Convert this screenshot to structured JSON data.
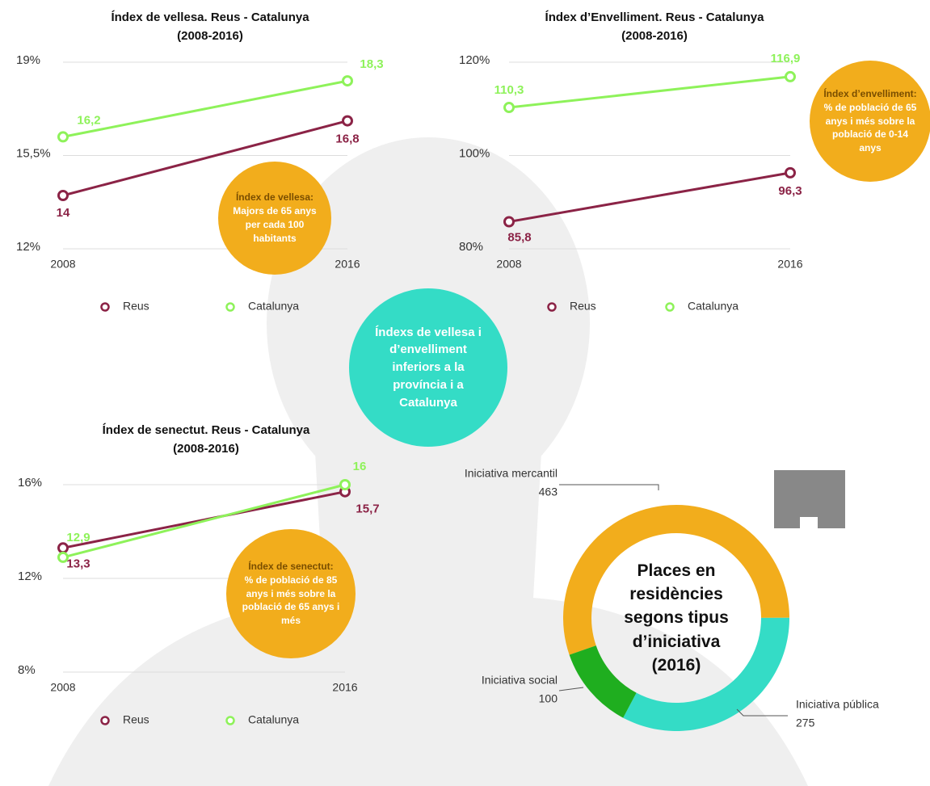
{
  "note": "Índexs de vellesa i d’envelliment inferiors a la província i a Catalunya",
  "chart_data": [
    {
      "type": "line",
      "title": "Índex de vellesa. Reus - Catalunya",
      "subtitle": "(2008-2016)",
      "categories": [
        "2008",
        "2016"
      ],
      "series": [
        {
          "name": "Reus",
          "color": "#8b2346",
          "values": [
            14,
            16.8
          ],
          "value_labels": [
            "14",
            "16,8"
          ]
        },
        {
          "name": "Catalunya",
          "color": "#8ef25a",
          "values": [
            16.2,
            18.3
          ],
          "value_labels": [
            "16,2",
            "18,3"
          ]
        }
      ],
      "ylim": [
        12,
        19
      ],
      "yticks": [
        {
          "value": 12,
          "label": "12%"
        },
        {
          "value": 15.5,
          "label": "15,5%"
        },
        {
          "value": 19,
          "label": "19%"
        }
      ],
      "grid": true,
      "annotation": {
        "title": "Índex de vellesa:",
        "text": "Majors de 65 anys per cada 100 habitants"
      }
    },
    {
      "type": "line",
      "title": "Índex d’Envelliment. Reus - Catalunya",
      "subtitle": "(2008-2016)",
      "categories": [
        "2008",
        "2016"
      ],
      "series": [
        {
          "name": "Reus",
          "color": "#8b2346",
          "values": [
            85.8,
            96.3
          ],
          "value_labels": [
            "85,8",
            "96,3"
          ]
        },
        {
          "name": "Catalunya",
          "color": "#8ef25a",
          "values": [
            110.3,
            116.9
          ],
          "value_labels": [
            "110,3",
            "116,9"
          ]
        }
      ],
      "ylim": [
        80,
        120
      ],
      "yticks": [
        {
          "value": 80,
          "label": "80%"
        },
        {
          "value": 100,
          "label": "100%"
        },
        {
          "value": 120,
          "label": "120%"
        }
      ],
      "grid": true,
      "annotation": {
        "title": "Índex d’envelliment:",
        "text": "% de població de 65 anys i més sobre la població de 0-14 anys"
      }
    },
    {
      "type": "line",
      "title": "Índex de senectut. Reus - Catalunya",
      "subtitle": "(2008-2016)",
      "categories": [
        "2008",
        "2016"
      ],
      "series": [
        {
          "name": "Reus",
          "color": "#8b2346",
          "values": [
            13.3,
            15.7
          ],
          "value_labels": [
            "13,3",
            "15,7"
          ]
        },
        {
          "name": "Catalunya",
          "color": "#8ef25a",
          "values": [
            12.9,
            16
          ],
          "value_labels": [
            "12,9",
            "16"
          ]
        }
      ],
      "ylim": [
        8,
        16
      ],
      "yticks": [
        {
          "value": 8,
          "label": "8%"
        },
        {
          "value": 12,
          "label": "12%"
        },
        {
          "value": 16,
          "label": "16%"
        }
      ],
      "grid": true,
      "annotation": {
        "title": "Índex de senectut:",
        "text": "% de població de 85 anys i més sobre la població de 65 anys i més"
      }
    },
    {
      "type": "donut",
      "title": "Places en residències segons tipus d’iniciativa (2016)",
      "categories": [
        "Iniciativa mercantil",
        "Iniciativa pública",
        "Iniciativa social"
      ],
      "values": [
        463,
        275,
        100
      ],
      "colors": [
        "#f2ad1c",
        "#34dcc6",
        "#1fae1f"
      ]
    }
  ]
}
